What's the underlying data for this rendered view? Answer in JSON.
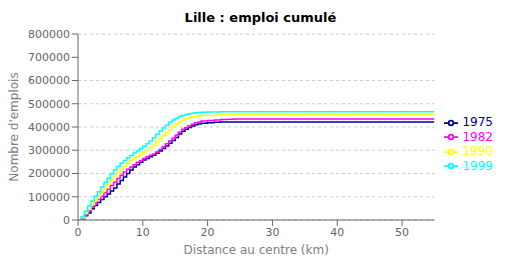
{
  "chart_data": {
    "type": "line",
    "title": "Lille : emploi cumulé",
    "xlabel": "Distance au centre (km)",
    "ylabel": "Nombre d'emplois",
    "x": [
      0,
      0.5,
      1,
      1.5,
      2,
      2.5,
      3,
      3.5,
      4,
      4.5,
      5,
      5.5,
      6,
      6.5,
      7,
      7.5,
      8,
      8.5,
      9,
      9.5,
      10,
      10.5,
      11,
      11.5,
      12,
      12.5,
      13,
      13.5,
      14,
      14.5,
      15,
      15.5,
      16,
      16.5,
      17,
      17.5,
      18,
      18.5,
      19,
      20,
      21,
      22,
      23,
      24,
      25,
      26,
      27,
      28,
      29,
      30,
      31,
      32,
      55
    ],
    "xlim": [
      0,
      55
    ],
    "ylim": [
      0,
      800000
    ],
    "xticks": [
      0,
      10,
      20,
      30,
      40,
      50
    ],
    "yticks": [
      0,
      100000,
      200000,
      300000,
      400000,
      500000,
      600000,
      700000,
      800000
    ],
    "grid": true,
    "legend": "right",
    "line_style": "step",
    "series": [
      {
        "name": "1975",
        "color": "#00008B",
        "values": [
          0,
          5000,
          18000,
          30000,
          48000,
          62000,
          75000,
          88000,
          100000,
          112000,
          125000,
          138000,
          155000,
          170000,
          185000,
          200000,
          215000,
          228000,
          238000,
          248000,
          258000,
          265000,
          272000,
          278000,
          287000,
          297000,
          308000,
          318000,
          330000,
          342000,
          355000,
          370000,
          382000,
          390000,
          398000,
          404000,
          410000,
          413000,
          416000,
          418000,
          420000,
          421000,
          421500,
          422000,
          422000,
          422000,
          422000,
          422000,
          422000,
          422000,
          422000,
          422000,
          422000
        ]
      },
      {
        "name": "1982",
        "color": "#FF00FF",
        "values": [
          0,
          8000,
          22000,
          38000,
          56000,
          72000,
          88000,
          102000,
          118000,
          132000,
          148000,
          162000,
          178000,
          192000,
          206000,
          218000,
          228000,
          238000,
          248000,
          256000,
          264000,
          272000,
          278000,
          284000,
          292000,
          303000,
          315000,
          328000,
          340000,
          352000,
          365000,
          378000,
          390000,
          398000,
          405000,
          412000,
          418000,
          422000,
          426000,
          428000,
          430000,
          432000,
          433000,
          434000,
          434000,
          434000,
          434000,
          434000,
          434000,
          434000,
          434000,
          434000,
          434000
        ]
      },
      {
        "name": "1990",
        "color": "#FFFF00",
        "values": [
          0,
          10000,
          28000,
          46000,
          66000,
          84000,
          103000,
          120000,
          138000,
          155000,
          172000,
          188000,
          204000,
          218000,
          232000,
          245000,
          257000,
          266000,
          274000,
          283000,
          292000,
          302000,
          312000,
          323000,
          336000,
          350000,
          363000,
          376000,
          388000,
          400000,
          412000,
          422000,
          430000,
          436000,
          440000,
          443000,
          445000,
          447000,
          449000,
          450000,
          452000,
          453000,
          453500,
          454000,
          454000,
          454000,
          454000,
          454000,
          454000,
          454000,
          454000,
          454000,
          454000
        ]
      },
      {
        "name": "1999",
        "color": "#00FFFF",
        "values": [
          0,
          15000,
          38000,
          60000,
          82000,
          102000,
          122000,
          142000,
          162000,
          180000,
          198000,
          215000,
          230000,
          244000,
          256000,
          268000,
          278000,
          288000,
          297000,
          307000,
          317000,
          328000,
          340000,
          354000,
          369000,
          383000,
          396000,
          408000,
          420000,
          430000,
          438000,
          445000,
          450000,
          454000,
          457000,
          459000,
          461000,
          462000,
          463000,
          464000,
          465000,
          465500,
          466000,
          466000,
          466000,
          466000,
          466000,
          466000,
          466000,
          466000,
          466000,
          466000,
          466000
        ]
      }
    ]
  }
}
